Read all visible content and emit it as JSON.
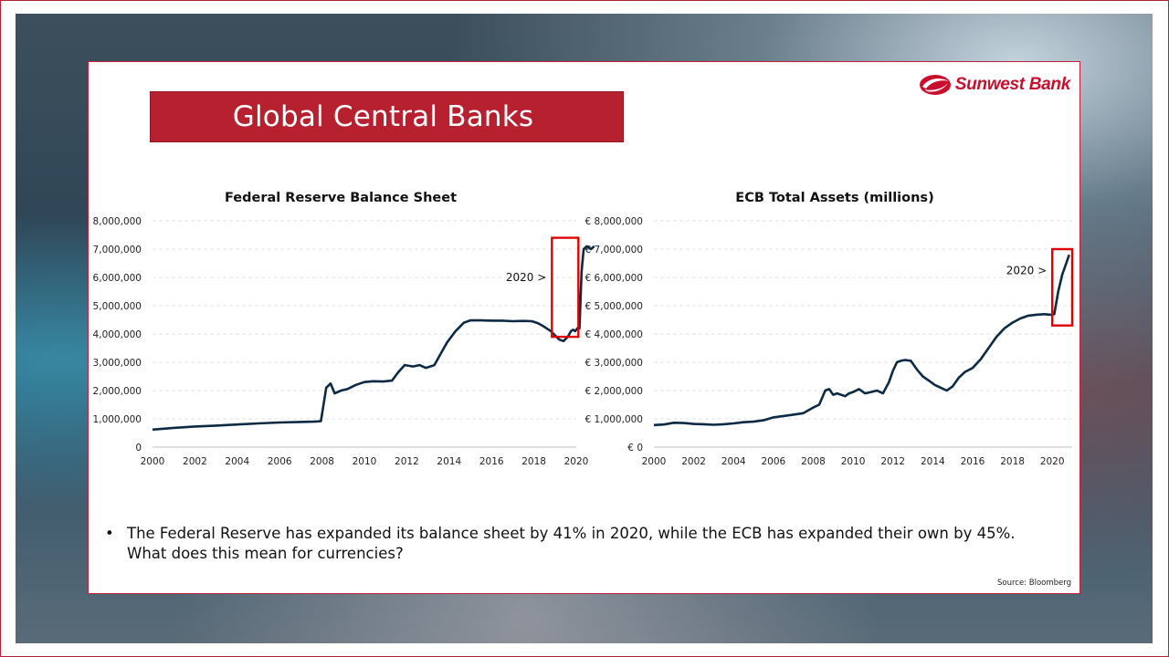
{
  "slide": {
    "title": "Global Central Banks",
    "logo_text": "Sunwest Bank",
    "bullet": "The Federal Reserve  has expanded its balance sheet by 41% in 2020, while the ECB has expanded their own by 45%. What does this mean for currencies?",
    "source": "Source: Bloomberg",
    "colors": {
      "accent": "#b7202f",
      "line": "#0d2a45",
      "highlight": "#e00000"
    }
  },
  "chart_data": [
    {
      "type": "line",
      "title": "Federal Reserve Balance Sheet",
      "ylim": [
        0,
        8000000
      ],
      "xlim": [
        2000,
        2020
      ],
      "yticks": [
        "0",
        "1,000,000",
        "2,000,000",
        "3,000,000",
        "4,000,000",
        "5,000,000",
        "6,000,000",
        "7,000,000",
        "8,000,000"
      ],
      "ytick_values": [
        0,
        1000000,
        2000000,
        3000000,
        4000000,
        5000000,
        6000000,
        7000000,
        8000000
      ],
      "xticks": [
        "2000",
        "2002",
        "2004",
        "2006",
        "2008",
        "2010",
        "2012",
        "2014",
        "2016",
        "2018",
        "2020"
      ],
      "xtick_values": [
        2000,
        2002,
        2004,
        2006,
        2008,
        2010,
        2012,
        2014,
        2016,
        2018,
        2020
      ],
      "annotation": "2020 >",
      "highlight_range": {
        "x": [
          2018.85,
          2020.1
        ],
        "y": [
          3900000,
          7400000
        ]
      },
      "grid": true,
      "series": [
        {
          "x": [
            2000,
            2001,
            2002,
            2003,
            2004,
            2005,
            2006,
            2007,
            2007.6,
            2007.8,
            2007.95,
            2008.2,
            2008.4,
            2008.6,
            2008.9,
            2009.2,
            2009.6,
            2010,
            2010.4,
            2010.9,
            2011.3,
            2011.6,
            2011.9,
            2012.3,
            2012.6,
            2012.9,
            2013.3,
            2013.6,
            2013.9,
            2014.3,
            2014.7,
            2015,
            2015.5,
            2016,
            2016.5,
            2017,
            2017.5,
            2017.9,
            2018.2,
            2018.5,
            2018.8,
            2019,
            2019.2,
            2019.4,
            2019.6,
            2019.75,
            2019.85,
            2019.95,
            2020.05,
            2020.15,
            2020.25,
            2020.35,
            2020.5,
            2020.7,
            2020.85
          ],
          "values": [
            620000,
            680000,
            730000,
            760000,
            800000,
            840000,
            870000,
            890000,
            900000,
            910000,
            920000,
            2100000,
            2250000,
            1900000,
            2000000,
            2050000,
            2200000,
            2300000,
            2330000,
            2320000,
            2350000,
            2650000,
            2900000,
            2850000,
            2900000,
            2800000,
            2900000,
            3300000,
            3700000,
            4100000,
            4400000,
            4480000,
            4480000,
            4470000,
            4470000,
            4450000,
            4460000,
            4450000,
            4380000,
            4250000,
            4100000,
            3950000,
            3800000,
            3750000,
            3900000,
            4100000,
            4150000,
            4100000,
            4200000,
            4200000,
            6200000,
            7000000,
            7100000,
            7000000,
            7100000
          ]
        }
      ]
    },
    {
      "type": "line",
      "title": "ECB Total Assets (millions)",
      "ylim": [
        0,
        8000000
      ],
      "xlim": [
        2000,
        2021
      ],
      "yticks": [
        "€ 0",
        "€ 1,000,000",
        "€ 2,000,000",
        "€ 3,000,000",
        "€ 4,000,000",
        "€ 5,000,000",
        "€ 6,000,000",
        "€ 7,000,000",
        "€ 8,000,000"
      ],
      "ytick_values": [
        0,
        1000000,
        2000000,
        3000000,
        4000000,
        5000000,
        6000000,
        7000000,
        8000000
      ],
      "xticks": [
        "2000",
        "2002",
        "2004",
        "2006",
        "2008",
        "2010",
        "2012",
        "2014",
        "2016",
        "2018",
        "2020"
      ],
      "xtick_values": [
        2000,
        2002,
        2004,
        2006,
        2008,
        2010,
        2012,
        2014,
        2016,
        2018,
        2020
      ],
      "annotation": "2020 >",
      "highlight_range": {
        "x": [
          2020.0,
          2021.0
        ],
        "y": [
          4300000,
          7000000
        ]
      },
      "grid": true,
      "series": [
        {
          "x": [
            2000,
            2000.5,
            2001,
            2001.5,
            2002,
            2002.5,
            2003,
            2003.5,
            2004,
            2004.5,
            2005,
            2005.5,
            2006,
            2006.5,
            2007,
            2007.5,
            2008,
            2008.3,
            2008.6,
            2008.8,
            2009,
            2009.2,
            2009.4,
            2009.6,
            2009.8,
            2010,
            2010.3,
            2010.6,
            2010.9,
            2011.2,
            2011.5,
            2011.8,
            2012,
            2012.2,
            2012.4,
            2012.6,
            2012.9,
            2013.2,
            2013.5,
            2013.8,
            2014.1,
            2014.4,
            2014.7,
            2015,
            2015.3,
            2015.6,
            2016,
            2016.4,
            2016.8,
            2017.2,
            2017.6,
            2018,
            2018.4,
            2018.8,
            2019.2,
            2019.6,
            2019.9,
            2020.1,
            2020.3,
            2020.5,
            2020.7,
            2020.85
          ],
          "values": [
            780000,
            800000,
            860000,
            850000,
            820000,
            810000,
            790000,
            810000,
            840000,
            880000,
            900000,
            950000,
            1050000,
            1100000,
            1150000,
            1200000,
            1400000,
            1500000,
            2000000,
            2050000,
            1850000,
            1900000,
            1850000,
            1800000,
            1900000,
            1950000,
            2050000,
            1900000,
            1950000,
            2000000,
            1900000,
            2300000,
            2700000,
            3000000,
            3050000,
            3080000,
            3050000,
            2750000,
            2500000,
            2350000,
            2200000,
            2100000,
            2000000,
            2150000,
            2450000,
            2650000,
            2800000,
            3100000,
            3500000,
            3900000,
            4200000,
            4400000,
            4550000,
            4650000,
            4680000,
            4700000,
            4680000,
            4700000,
            5500000,
            6100000,
            6500000,
            6800000
          ]
        }
      ]
    }
  ]
}
